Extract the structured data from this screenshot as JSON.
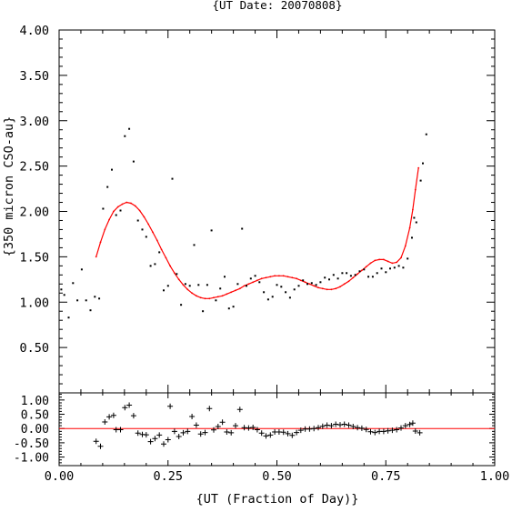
{
  "chart_data": [
    {
      "type": "scatter",
      "title": "{UT Date: 20070808}",
      "xlabel": "",
      "ylabel": "{350 micron CSO-au}",
      "xlim": [
        0,
        1
      ],
      "ylim": [
        0,
        4
      ],
      "yticks": [
        "0.50",
        "1.00",
        "1.50",
        "2.00",
        "2.50",
        "3.00",
        "3.50",
        "4.00"
      ],
      "grid": false,
      "series": [
        {
          "color": "#000000",
          "marker": "dot",
          "points": [
            [
              0.005,
              1.14
            ],
            [
              0.012,
              1.08
            ],
            [
              0.022,
              0.83
            ],
            [
              0.032,
              1.21
            ],
            [
              0.042,
              1.02
            ],
            [
              0.052,
              1.36
            ],
            [
              0.062,
              1.02
            ],
            [
              0.072,
              0.91
            ],
            [
              0.082,
              1.06
            ],
            [
              0.092,
              1.04
            ],
            [
              0.101,
              2.03
            ],
            [
              0.111,
              2.27
            ],
            [
              0.121,
              2.46
            ],
            [
              0.131,
              1.96
            ],
            [
              0.141,
              2.01
            ],
            [
              0.151,
              2.83
            ],
            [
              0.161,
              2.91
            ],
            [
              0.171,
              2.55
            ],
            [
              0.181,
              1.9
            ],
            [
              0.191,
              1.8
            ],
            [
              0.2,
              1.72
            ],
            [
              0.21,
              1.4
            ],
            [
              0.22,
              1.42
            ],
            [
              0.23,
              1.55
            ],
            [
              0.24,
              1.13
            ],
            [
              0.25,
              1.18
            ],
            [
              0.26,
              2.36
            ],
            [
              0.27,
              1.31
            ],
            [
              0.28,
              0.97
            ],
            [
              0.29,
              1.2
            ],
            [
              0.3,
              1.18
            ],
            [
              0.31,
              1.63
            ],
            [
              0.32,
              1.19
            ],
            [
              0.33,
              0.9
            ],
            [
              0.34,
              1.19
            ],
            [
              0.35,
              1.79
            ],
            [
              0.36,
              1.02
            ],
            [
              0.37,
              1.15
            ],
            [
              0.38,
              1.28
            ],
            [
              0.39,
              0.93
            ],
            [
              0.4,
              0.95
            ],
            [
              0.41,
              1.2
            ],
            [
              0.42,
              1.81
            ],
            [
              0.43,
              1.18
            ],
            [
              0.44,
              1.26
            ],
            [
              0.45,
              1.29
            ],
            [
              0.46,
              1.22
            ],
            [
              0.47,
              1.11
            ],
            [
              0.48,
              1.03
            ],
            [
              0.49,
              1.06
            ],
            [
              0.5,
              1.19
            ],
            [
              0.51,
              1.17
            ],
            [
              0.52,
              1.11
            ],
            [
              0.53,
              1.05
            ],
            [
              0.54,
              1.14
            ],
            [
              0.55,
              1.18
            ],
            [
              0.56,
              1.24
            ],
            [
              0.57,
              1.2
            ],
            [
              0.58,
              1.21
            ],
            [
              0.59,
              1.19
            ],
            [
              0.6,
              1.22
            ],
            [
              0.61,
              1.27
            ],
            [
              0.62,
              1.25
            ],
            [
              0.63,
              1.3
            ],
            [
              0.64,
              1.26
            ],
            [
              0.65,
              1.32
            ],
            [
              0.66,
              1.32
            ],
            [
              0.67,
              1.29
            ],
            [
              0.68,
              1.3
            ],
            [
              0.69,
              1.34
            ],
            [
              0.7,
              1.36
            ],
            [
              0.71,
              1.28
            ],
            [
              0.72,
              1.28
            ],
            [
              0.73,
              1.32
            ],
            [
              0.74,
              1.37
            ],
            [
              0.75,
              1.33
            ],
            [
              0.76,
              1.37
            ],
            [
              0.77,
              1.38
            ],
            [
              0.78,
              1.4
            ],
            [
              0.79,
              1.38
            ],
            [
              0.8,
              1.48
            ],
            [
              0.81,
              1.71
            ],
            [
              0.815,
              1.93
            ],
            [
              0.82,
              1.88
            ],
            [
              0.83,
              2.34
            ],
            [
              0.835,
              2.53
            ],
            [
              0.843,
              2.85
            ]
          ]
        },
        {
          "color": "#ff0000",
          "marker": "line",
          "x": [
            0.085,
            0.095,
            0.105,
            0.115,
            0.125,
            0.135,
            0.145,
            0.155,
            0.165,
            0.175,
            0.185,
            0.195,
            0.205,
            0.215,
            0.225,
            0.235,
            0.245,
            0.255,
            0.265,
            0.275,
            0.285,
            0.295,
            0.305,
            0.315,
            0.325,
            0.335,
            0.345,
            0.355,
            0.365,
            0.375,
            0.385,
            0.395,
            0.405,
            0.415,
            0.425,
            0.435,
            0.445,
            0.455,
            0.465,
            0.475,
            0.485,
            0.495,
            0.505,
            0.515,
            0.525,
            0.535,
            0.545,
            0.555,
            0.565,
            0.575,
            0.585,
            0.595,
            0.605,
            0.615,
            0.625,
            0.635,
            0.645,
            0.655,
            0.665,
            0.675,
            0.685,
            0.695,
            0.705,
            0.715,
            0.725,
            0.735,
            0.745,
            0.755,
            0.765,
            0.775,
            0.785,
            0.795,
            0.805,
            0.812,
            0.818,
            0.825
          ],
          "y": [
            1.5,
            1.66,
            1.8,
            1.91,
            2.0,
            2.05,
            2.08,
            2.1,
            2.09,
            2.06,
            2.01,
            1.94,
            1.86,
            1.77,
            1.68,
            1.58,
            1.49,
            1.4,
            1.32,
            1.25,
            1.19,
            1.14,
            1.1,
            1.07,
            1.05,
            1.04,
            1.04,
            1.05,
            1.06,
            1.07,
            1.09,
            1.11,
            1.13,
            1.15,
            1.18,
            1.2,
            1.22,
            1.24,
            1.26,
            1.27,
            1.28,
            1.29,
            1.29,
            1.29,
            1.28,
            1.27,
            1.26,
            1.24,
            1.22,
            1.2,
            1.18,
            1.16,
            1.15,
            1.14,
            1.14,
            1.15,
            1.17,
            1.2,
            1.23,
            1.27,
            1.31,
            1.35,
            1.39,
            1.43,
            1.46,
            1.47,
            1.47,
            1.45,
            1.43,
            1.44,
            1.49,
            1.62,
            1.82,
            2.02,
            2.24,
            2.48
          ]
        }
      ]
    },
    {
      "type": "scatter",
      "title": "",
      "xlabel": "{UT (Fraction of Day)}",
      "ylabel": "",
      "xlim": [
        0,
        1
      ],
      "ylim": [
        -1.3,
        1.25
      ],
      "xticks": [
        "0.00",
        "0.25",
        "0.50",
        "0.75",
        "1.00"
      ],
      "yticks": [
        "-1.00",
        "-0.50",
        "0.00",
        "0.50",
        "1.00"
      ],
      "grid": false,
      "zero_line_color": "#ff0000",
      "series": [
        {
          "color": "#000000",
          "marker": "plus",
          "points": [
            [
              0.085,
              -0.45
            ],
            [
              0.095,
              -0.62
            ],
            [
              0.105,
              0.23
            ],
            [
              0.115,
              0.41
            ],
            [
              0.125,
              0.46
            ],
            [
              0.131,
              -0.04
            ],
            [
              0.141,
              -0.04
            ],
            [
              0.151,
              0.73
            ],
            [
              0.161,
              0.82
            ],
            [
              0.171,
              0.45
            ],
            [
              0.181,
              -0.16
            ],
            [
              0.191,
              -0.21
            ],
            [
              0.2,
              -0.22
            ],
            [
              0.21,
              -0.46
            ],
            [
              0.22,
              -0.35
            ],
            [
              0.23,
              -0.23
            ],
            [
              0.24,
              -0.54
            ],
            [
              0.25,
              -0.39
            ],
            [
              0.255,
              0.78
            ],
            [
              0.265,
              -0.1
            ],
            [
              0.275,
              -0.28
            ],
            [
              0.285,
              -0.15
            ],
            [
              0.295,
              -0.1
            ],
            [
              0.305,
              0.42
            ],
            [
              0.315,
              0.12
            ],
            [
              0.325,
              -0.19
            ],
            [
              0.335,
              -0.14
            ],
            [
              0.345,
              0.7
            ],
            [
              0.355,
              -0.05
            ],
            [
              0.365,
              0.07
            ],
            [
              0.375,
              0.22
            ],
            [
              0.385,
              -0.12
            ],
            [
              0.395,
              -0.15
            ],
            [
              0.405,
              0.1
            ],
            [
              0.415,
              0.67
            ],
            [
              0.425,
              0.03
            ],
            [
              0.435,
              0.02
            ],
            [
              0.445,
              0.04
            ],
            [
              0.455,
              -0.04
            ],
            [
              0.465,
              -0.16
            ],
            [
              0.475,
              -0.26
            ],
            [
              0.485,
              -0.23
            ],
            [
              0.495,
              -0.12
            ],
            [
              0.505,
              -0.12
            ],
            [
              0.515,
              -0.13
            ],
            [
              0.525,
              -0.18
            ],
            [
              0.535,
              -0.24
            ],
            [
              0.545,
              -0.14
            ],
            [
              0.555,
              -0.06
            ],
            [
              0.565,
              -0.02
            ],
            [
              0.575,
              -0.02
            ],
            [
              0.585,
              0.0
            ],
            [
              0.595,
              0.03
            ],
            [
              0.605,
              0.08
            ],
            [
              0.615,
              0.12
            ],
            [
              0.625,
              0.1
            ],
            [
              0.635,
              0.15
            ],
            [
              0.645,
              0.13
            ],
            [
              0.655,
              0.15
            ],
            [
              0.665,
              0.12
            ],
            [
              0.675,
              0.07
            ],
            [
              0.685,
              0.03
            ],
            [
              0.695,
              0.01
            ],
            [
              0.705,
              -0.03
            ],
            [
              0.715,
              -0.11
            ],
            [
              0.725,
              -0.14
            ],
            [
              0.735,
              -0.1
            ],
            [
              0.745,
              -0.1
            ],
            [
              0.755,
              -0.08
            ],
            [
              0.765,
              -0.06
            ],
            [
              0.775,
              -0.04
            ],
            [
              0.785,
              0.02
            ],
            [
              0.795,
              0.1
            ],
            [
              0.805,
              0.14
            ],
            [
              0.812,
              0.19
            ],
            [
              0.818,
              -0.09
            ],
            [
              0.828,
              -0.15
            ]
          ]
        }
      ]
    }
  ]
}
